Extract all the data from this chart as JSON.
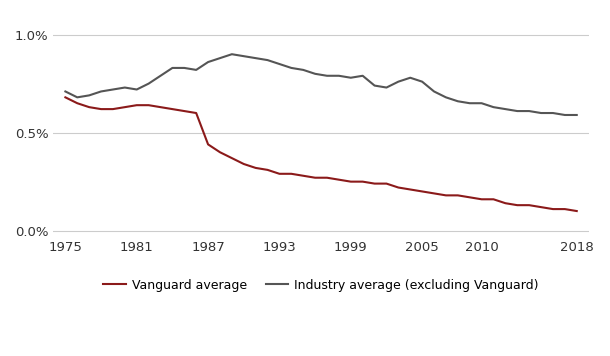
{
  "vanguard_years": [
    1975,
    1976,
    1977,
    1978,
    1979,
    1980,
    1981,
    1982,
    1983,
    1984,
    1985,
    1986,
    1987,
    1988,
    1989,
    1990,
    1991,
    1992,
    1993,
    1994,
    1995,
    1996,
    1997,
    1998,
    1999,
    2000,
    2001,
    2002,
    2003,
    2004,
    2005,
    2006,
    2007,
    2008,
    2009,
    2010,
    2011,
    2012,
    2013,
    2014,
    2015,
    2016,
    2017,
    2018
  ],
  "vanguard_values": [
    0.0068,
    0.0065,
    0.0063,
    0.0062,
    0.0062,
    0.0063,
    0.0064,
    0.0064,
    0.0063,
    0.0062,
    0.0061,
    0.006,
    0.0044,
    0.004,
    0.0037,
    0.0034,
    0.0032,
    0.0031,
    0.0029,
    0.0029,
    0.0028,
    0.0027,
    0.0027,
    0.0026,
    0.0025,
    0.0025,
    0.0024,
    0.0024,
    0.0022,
    0.0021,
    0.002,
    0.0019,
    0.0018,
    0.0018,
    0.0017,
    0.0016,
    0.0016,
    0.0014,
    0.0013,
    0.0013,
    0.0012,
    0.0011,
    0.0011,
    0.001
  ],
  "industry_years": [
    1975,
    1976,
    1977,
    1978,
    1979,
    1980,
    1981,
    1982,
    1983,
    1984,
    1985,
    1986,
    1987,
    1988,
    1989,
    1990,
    1991,
    1992,
    1993,
    1994,
    1995,
    1996,
    1997,
    1998,
    1999,
    2000,
    2001,
    2002,
    2003,
    2004,
    2005,
    2006,
    2007,
    2008,
    2009,
    2010,
    2011,
    2012,
    2013,
    2014,
    2015,
    2016,
    2017,
    2018
  ],
  "industry_values": [
    0.0071,
    0.0068,
    0.0069,
    0.0071,
    0.0072,
    0.0073,
    0.0072,
    0.0075,
    0.0079,
    0.0083,
    0.0083,
    0.0082,
    0.0086,
    0.0088,
    0.009,
    0.0089,
    0.0088,
    0.0087,
    0.0085,
    0.0083,
    0.0082,
    0.008,
    0.0079,
    0.0079,
    0.0078,
    0.0079,
    0.0074,
    0.0073,
    0.0076,
    0.0078,
    0.0076,
    0.0071,
    0.0068,
    0.0066,
    0.0065,
    0.0065,
    0.0063,
    0.0062,
    0.0061,
    0.0061,
    0.006,
    0.006,
    0.0059,
    0.0059
  ],
  "vanguard_color": "#8b1a1a",
  "industry_color": "#555555",
  "background_color": "#ffffff",
  "grid_color": "#cccccc",
  "yticks": [
    0.0,
    0.005,
    0.01
  ],
  "ytick_labels": [
    "0.0%",
    "0.5%",
    "1.0%"
  ],
  "xticks": [
    1975,
    1981,
    1987,
    1993,
    1999,
    2005,
    2010,
    2018
  ],
  "legend_vanguard": "Vanguard average",
  "legend_industry": "Industry average (excluding Vanguard)",
  "ylim": [
    -0.0003,
    0.011
  ]
}
